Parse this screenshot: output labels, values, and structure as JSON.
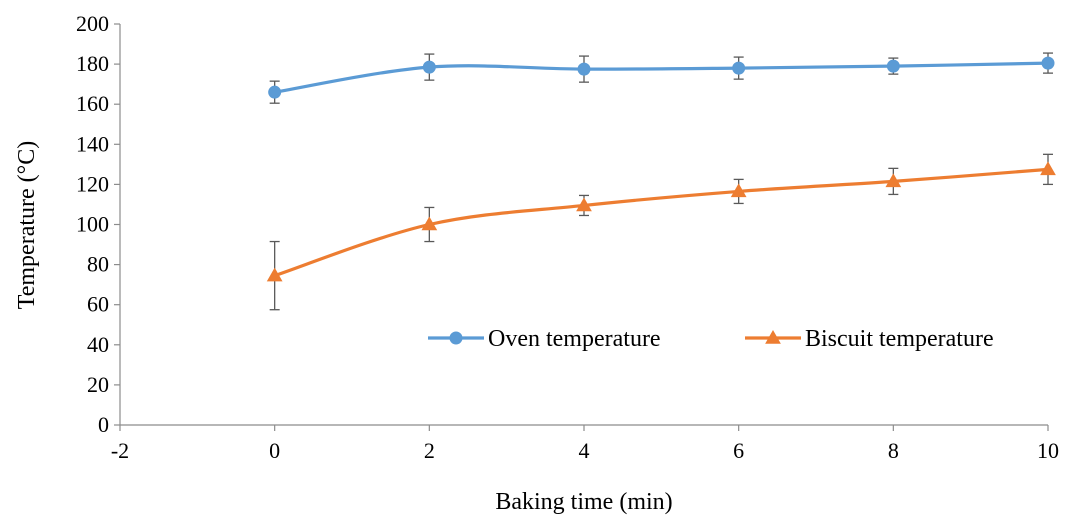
{
  "chart_data": {
    "type": "line",
    "title": "",
    "xlabel": "Baking time (min)",
    "ylabel": "Temperature (°C)",
    "xlim": [
      -2,
      10
    ],
    "ylim": [
      0,
      200
    ],
    "x_ticks": [
      "-2",
      "0",
      "2",
      "4",
      "6",
      "8",
      "10"
    ],
    "y_ticks": [
      "0",
      "20",
      "40",
      "60",
      "80",
      "100",
      "120",
      "140",
      "160",
      "180",
      "200"
    ],
    "grid": false,
    "legend_position": "inside-bottom-right",
    "series": [
      {
        "name": "Oven temperature",
        "color": "#5B9BD5",
        "marker": "circle",
        "x": [
          0,
          2,
          4,
          6,
          8,
          10
        ],
        "y": [
          166,
          178.5,
          177.5,
          178,
          179,
          180.5
        ],
        "error": [
          5.5,
          6.5,
          6.5,
          5.5,
          4,
          5
        ]
      },
      {
        "name": "Biscuit temperature",
        "color": "#ED7D31",
        "marker": "triangle",
        "x": [
          0,
          2,
          4,
          6,
          8,
          10
        ],
        "y": [
          74.5,
          100,
          109.5,
          116.5,
          121.5,
          127.5
        ],
        "error": [
          17,
          8.5,
          5,
          6,
          6.5,
          7.5
        ]
      }
    ]
  }
}
